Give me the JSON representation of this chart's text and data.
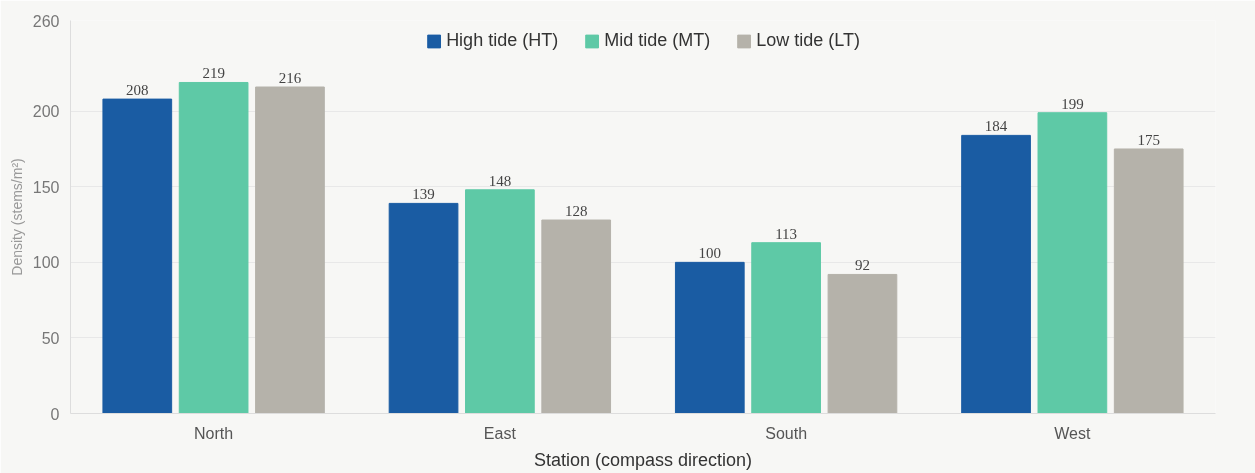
{
  "chart_data": {
    "type": "bar",
    "xlabel": "Station (compass direction)",
    "ylabel": "Density (stems/m²)",
    "categories": [
      "North",
      "East",
      "South",
      "West"
    ],
    "series": [
      {
        "name": "High tide (HT)",
        "color": "#1a5ca3",
        "values": [
          208,
          139,
          100,
          184
        ]
      },
      {
        "name": "Mid tide (MT)",
        "color": "#5ec9a6",
        "values": [
          219,
          148,
          113,
          199
        ]
      },
      {
        "name": "Low tide (LT)",
        "color": "#b5b2aa",
        "values": [
          216,
          128,
          92,
          175
        ]
      }
    ],
    "ylim": [
      0,
      260
    ],
    "yticks": [
      0,
      50,
      100,
      150,
      200,
      260
    ],
    "grid": "y",
    "legend": "top",
    "data_labels": true
  }
}
